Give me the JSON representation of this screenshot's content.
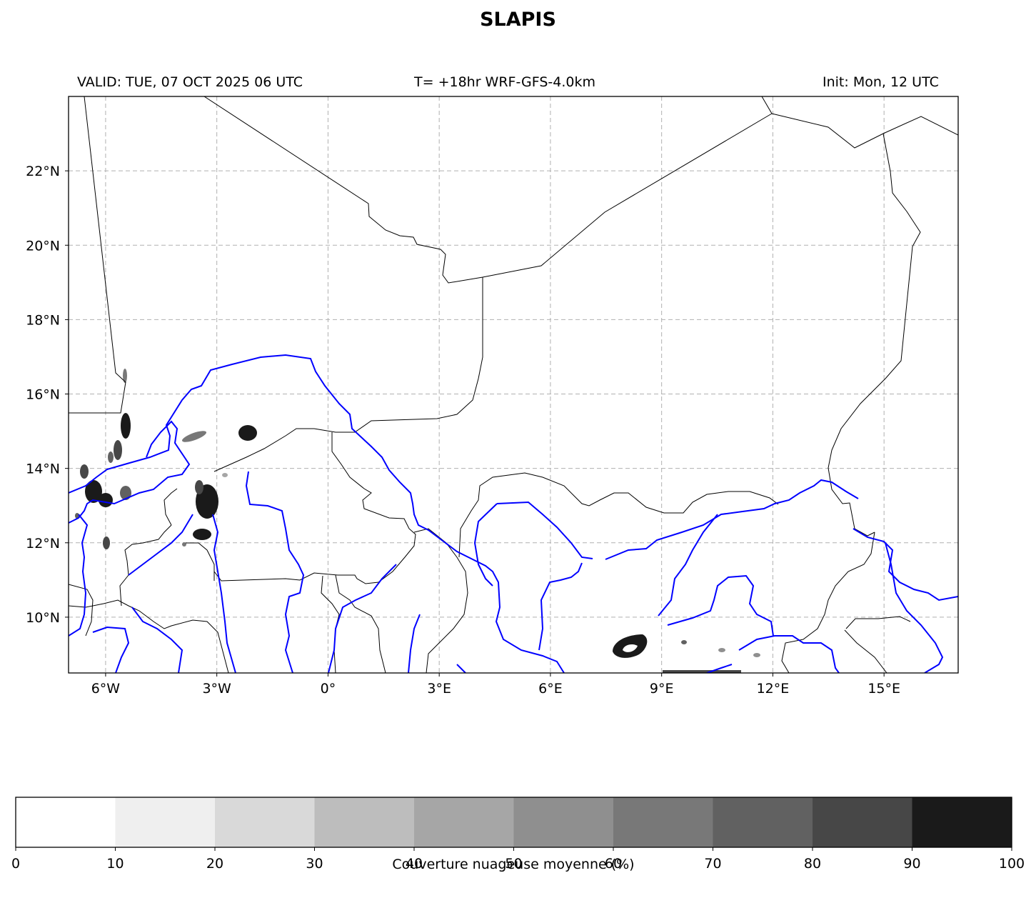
{
  "title": "SLAPIS",
  "header": {
    "valid": "VALID: TUE, 07 OCT 2025 06 UTC",
    "run": "T= +18hr WRF-GFS-4.0km",
    "init": "Init: Mon, 12 UTC"
  },
  "map": {
    "lon_range": [
      -7,
      17
    ],
    "lat_range": [
      8.5,
      24
    ],
    "lon_ticks": [
      {
        "value": -6,
        "label": "6°W"
      },
      {
        "value": -3,
        "label": "3°W"
      },
      {
        "value": 0,
        "label": "0°"
      },
      {
        "value": 3,
        "label": "3°E"
      },
      {
        "value": 6,
        "label": "6°E"
      },
      {
        "value": 9,
        "label": "9°E"
      },
      {
        "value": 12,
        "label": "12°E"
      },
      {
        "value": 15,
        "label": "15°E"
      }
    ],
    "lat_ticks": [
      {
        "value": 22,
        "label": "22°N"
      },
      {
        "value": 20,
        "label": "20°N"
      },
      {
        "value": 18,
        "label": "18°N"
      },
      {
        "value": 16,
        "label": "16°N"
      },
      {
        "value": 14,
        "label": "14°N"
      },
      {
        "value": 10,
        "label": "10°N"
      },
      {
        "value": 12,
        "label": "12°N"
      }
    ],
    "gridlines": true,
    "border_color": "#000000",
    "river_color": "#0000ff"
  },
  "colorbar": {
    "label": "Couverture nuageuse moyenne (%)",
    "ticks": [
      "0",
      "10",
      "20",
      "30",
      "40",
      "50",
      "60",
      "70",
      "80",
      "90",
      "100"
    ],
    "colors": [
      "#ffffff",
      "#efefef",
      "#d9d9d9",
      "#bdbdbd",
      "#a6a6a6",
      "#8f8f8f",
      "#787878",
      "#616161",
      "#474747",
      "#1a1a1a"
    ]
  }
}
